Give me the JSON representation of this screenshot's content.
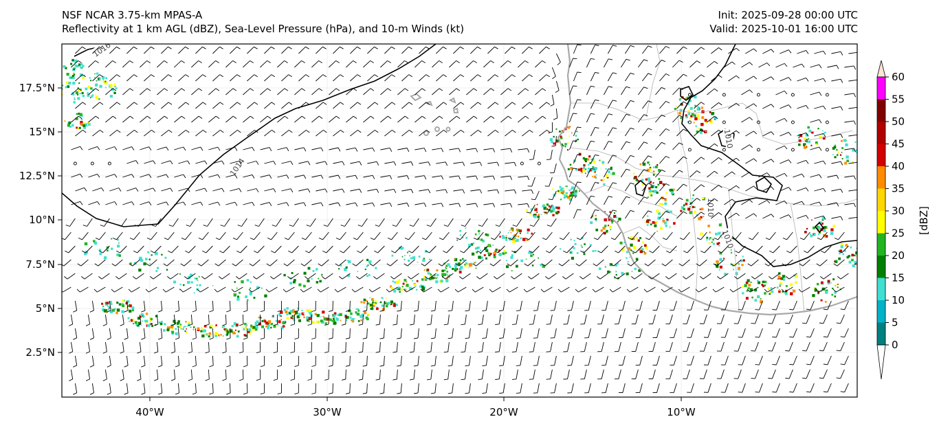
{
  "header": {
    "model_line": "NSF NCAR 3.75-km MPAS-A",
    "fields_line": "Reflectivity at 1 km AGL (dBZ), Sea-Level Pressure (hPa), and 10-m Winds (kt)",
    "init_line": "Init: 2025-09-28 00:00 UTC",
    "valid_line": "Valid: 2025-10-01 16:00 UTC"
  },
  "axes": {
    "lon_labels": [
      "40°W",
      "30°W",
      "20°W",
      "10°W"
    ],
    "lat_labels": [
      "17.5°N",
      "15°N",
      "12.5°N",
      "10°N",
      "7.5°N",
      "5°N",
      "2.5°N"
    ]
  },
  "colorbar": {
    "unit_label": "[dBZ]",
    "ticks": [
      "0",
      "5",
      "10",
      "15",
      "20",
      "25",
      "30",
      "35",
      "40",
      "45",
      "50",
      "55",
      "60"
    ],
    "colors": [
      "#008080",
      "#00b3c8",
      "#40e0d0",
      "#008000",
      "#22b522",
      "#ffff00",
      "#ffd700",
      "#ff8c00",
      "#d40000",
      "#b00000",
      "#800000",
      "#ff00ff",
      "#ffe4d8"
    ]
  },
  "isobars": {
    "labels": [
      "1016",
      "1014",
      "1010",
      "1010",
      "1010"
    ]
  },
  "colors": {
    "coast": "#a8a8a8",
    "isobar": "#000000",
    "barb": "#000000"
  }
}
